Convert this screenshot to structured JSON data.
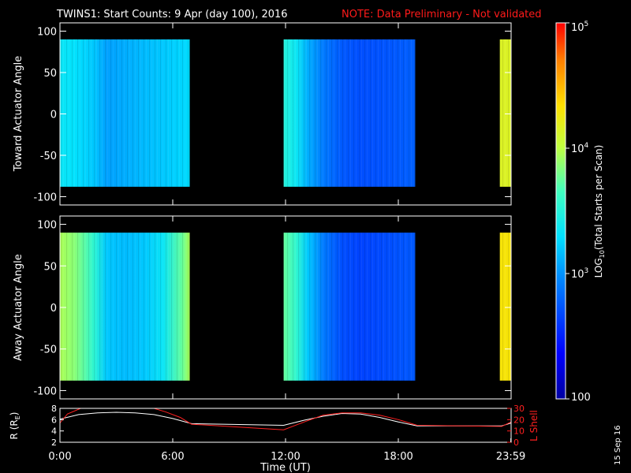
{
  "header": {
    "title": "TWINS1: Start Counts:  9 Apr (day 100), 2016",
    "note": "NOTE: Data Preliminary - Not validated",
    "date_stamp": "15 Sep 16"
  },
  "colors": {
    "background": "#000000",
    "note": "#ff1a1a",
    "axis": "#ffffff",
    "r_line": "#ffffff",
    "lshell_line": "#ff2020"
  },
  "chart_data": [
    {
      "type": "heatmap",
      "title": "",
      "ylabel": "Toward Actuator Angle",
      "xlim": [
        0,
        24
      ],
      "ylim": [
        -110,
        110
      ],
      "y_ticks": [
        -100,
        -50,
        0,
        50,
        100
      ],
      "y_tick_labels": [
        "-100",
        "-50",
        "0",
        "50",
        "100"
      ],
      "data_y_range": [
        -88,
        90
      ],
      "segments": [
        {
          "x_start": 0.0,
          "x_end": 6.9,
          "profile": [
            [
              0.0,
              3.35
            ],
            [
              0.8,
              3.3
            ],
            [
              1.8,
              3.2
            ],
            [
              2.5,
              3.05
            ],
            [
              3.5,
              3.1
            ],
            [
              4.5,
              3.15
            ],
            [
              5.5,
              3.2
            ],
            [
              6.5,
              3.25
            ],
            [
              6.9,
              3.28
            ]
          ]
        },
        {
          "x_start": 11.9,
          "x_end": 18.9,
          "profile": [
            [
              11.9,
              3.5
            ],
            [
              12.6,
              3.35
            ],
            [
              13.2,
              3.1
            ],
            [
              14.0,
              2.9
            ],
            [
              15.0,
              2.75
            ],
            [
              16.0,
              2.7
            ],
            [
              17.0,
              2.72
            ],
            [
              18.0,
              2.75
            ],
            [
              18.9,
              2.78
            ]
          ]
        },
        {
          "x_start": 23.4,
          "x_end": 24.0,
          "profile": [
            [
              23.4,
              4.15
            ],
            [
              24.0,
              4.15
            ]
          ]
        }
      ]
    },
    {
      "type": "heatmap",
      "title": "",
      "ylabel": "Away Actuator Angle",
      "xlim": [
        0,
        24
      ],
      "ylim": [
        -110,
        110
      ],
      "y_ticks": [
        -100,
        -50,
        0,
        50,
        100
      ],
      "y_tick_labels": [
        "-100",
        "-50",
        "0",
        "50",
        "100"
      ],
      "data_y_range": [
        -88,
        90
      ],
      "segments": [
        {
          "x_start": 0.0,
          "x_end": 6.9,
          "profile": [
            [
              0.0,
              3.95
            ],
            [
              0.8,
              3.85
            ],
            [
              1.8,
              3.55
            ],
            [
              2.5,
              3.2
            ],
            [
              3.5,
              3.15
            ],
            [
              4.5,
              3.2
            ],
            [
              5.5,
              3.35
            ],
            [
              6.5,
              3.75
            ],
            [
              6.9,
              3.95
            ]
          ]
        },
        {
          "x_start": 11.9,
          "x_end": 18.9,
          "profile": [
            [
              11.9,
              3.75
            ],
            [
              12.6,
              3.55
            ],
            [
              13.2,
              3.2
            ],
            [
              14.0,
              2.9
            ],
            [
              15.0,
              2.7
            ],
            [
              16.0,
              2.65
            ],
            [
              17.0,
              2.68
            ],
            [
              18.0,
              2.72
            ],
            [
              18.9,
              2.75
            ]
          ]
        },
        {
          "x_start": 23.4,
          "x_end": 24.0,
          "profile": [
            [
              23.4,
              4.3
            ],
            [
              24.0,
              4.3
            ]
          ]
        }
      ]
    },
    {
      "type": "line",
      "title": "",
      "xlabel": "Time (UT)",
      "xlim": [
        0,
        24
      ],
      "x_ticks": [
        0,
        6,
        12,
        18,
        23.983
      ],
      "x_tick_labels": [
        "0:00",
        "6:00",
        "12:00",
        "18:00",
        "23:59"
      ],
      "ylabel_left": "R (R",
      "ylabel_left_sub": "E",
      "ylabel_left_end": ")",
      "ylim_left": [
        2,
        8
      ],
      "y_ticks_left": [
        2,
        4,
        6,
        8
      ],
      "ylabel_right": "L Shell",
      "ylim_right": [
        0,
        30
      ],
      "y_ticks_right": [
        0,
        10,
        20,
        30
      ],
      "series": [
        {
          "axis": "left",
          "x": [
            0,
            1,
            2,
            3,
            4,
            5,
            6,
            7,
            11.9,
            13,
            14,
            15,
            16,
            17,
            18,
            19,
            23.5,
            24
          ],
          "values": [
            6.1,
            6.9,
            7.2,
            7.3,
            7.2,
            6.9,
            6.2,
            5.3,
            5.0,
            5.9,
            6.6,
            7.1,
            7.0,
            6.4,
            5.6,
            4.9,
            4.9,
            5.4
          ]
        },
        {
          "axis": "right",
          "x": [
            0,
            0.4,
            1.1,
            5.0,
            5.6,
            6.4,
            7.0,
            11.9,
            13.0,
            14.0,
            15.0,
            16.0,
            17.0,
            18.0,
            19.0,
            23.5,
            24.0
          ],
          "values": [
            17,
            25,
            30,
            30,
            27,
            22,
            16,
            11,
            18,
            24,
            26,
            26,
            24,
            20,
            15,
            14,
            18
          ]
        }
      ]
    }
  ],
  "colorbar": {
    "label": "LOG",
    "label_sub": "10",
    "label_end": "(Total Starts per Scan)",
    "min_log": 2,
    "max_log": 5,
    "ticks": [
      {
        "log": 2,
        "base": "100",
        "exp": ""
      },
      {
        "log": 3,
        "base": "10",
        "exp": "3"
      },
      {
        "log": 4,
        "base": "10",
        "exp": "4"
      },
      {
        "log": 5,
        "base": "10",
        "exp": "5"
      }
    ]
  }
}
